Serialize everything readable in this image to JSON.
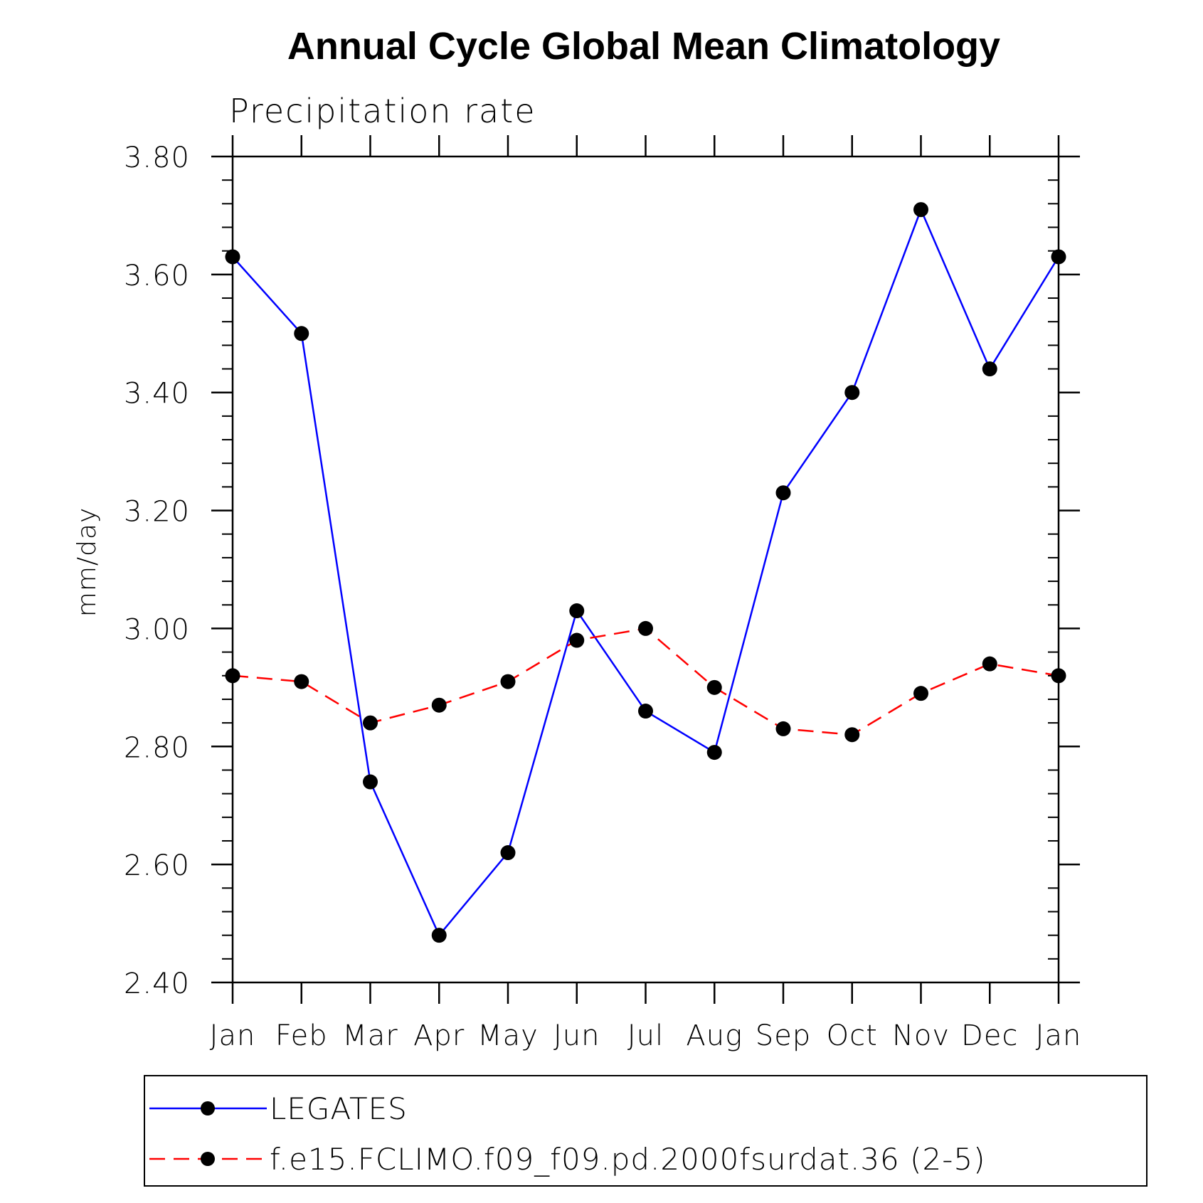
{
  "chart_data": {
    "type": "line",
    "title": "Annual Cycle Global Mean Climatology",
    "subtitle": "Precipitation rate",
    "xlabel": "",
    "ylabel": "mm/day",
    "categories": [
      "Jan",
      "Feb",
      "Mar",
      "Apr",
      "May",
      "Jun",
      "Jul",
      "Aug",
      "Sep",
      "Oct",
      "Nov",
      "Dec",
      "Jan"
    ],
    "ylim": [
      2.4,
      3.8
    ],
    "yticks": [
      2.4,
      2.6,
      2.8,
      3.0,
      3.2,
      3.4,
      3.6,
      3.8
    ],
    "ytick_labels": [
      "2.40",
      "2.60",
      "2.80",
      "3.00",
      "3.20",
      "3.40",
      "3.60",
      "3.80"
    ],
    "grid": false,
    "legend_position": "bottom",
    "series": [
      {
        "name": "LEGATES",
        "color": "#0000ff",
        "dashed": false,
        "values": [
          3.63,
          3.5,
          2.74,
          2.48,
          2.62,
          3.03,
          2.86,
          2.79,
          3.23,
          3.4,
          3.71,
          3.44,
          3.63
        ]
      },
      {
        "name": "f.e15.FCLIMO.f09_f09.pd.2000fsurdat.36 (2-5)",
        "color": "#ff0000",
        "dashed": true,
        "values": [
          2.92,
          2.91,
          2.84,
          2.87,
          2.91,
          2.98,
          3.0,
          2.9,
          2.83,
          2.82,
          2.89,
          2.94,
          2.92
        ]
      }
    ]
  }
}
